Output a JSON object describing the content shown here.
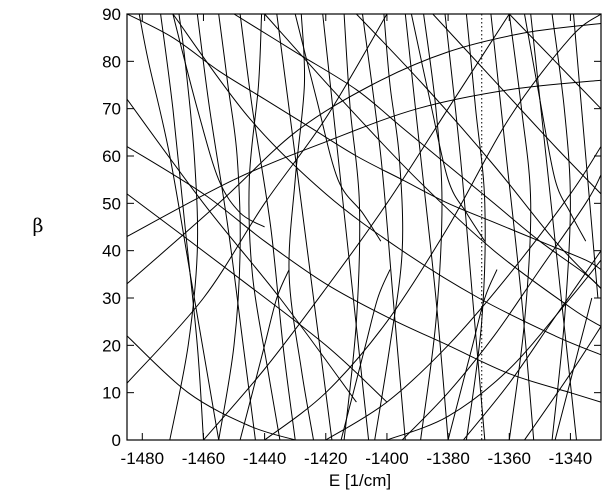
{
  "chart_data": {
    "type": "line",
    "xlabel": "E [1/cm]",
    "ylabel": "β",
    "xlim": [
      -1485,
      -1330
    ],
    "ylim": [
      0,
      90
    ],
    "x_ticks": [
      -1480,
      -1460,
      -1440,
      -1420,
      -1400,
      -1380,
      -1360,
      -1340
    ],
    "y_ticks": [
      0,
      10,
      20,
      30,
      40,
      50,
      60,
      70,
      80,
      90
    ],
    "x_tick_labels": [
      "-1480",
      "-1460",
      "-1440",
      "-1420",
      "-1400",
      "-1380",
      "-1360",
      "-1340"
    ],
    "y_tick_labels": [
      "0",
      "10",
      "20",
      "30",
      "40",
      "50",
      "60",
      "70",
      "80",
      "90"
    ],
    "reference_line": {
      "x": -1369,
      "style": "dotted"
    },
    "grid": false,
    "series": [
      {
        "x": [
          -1481,
          -1478,
          -1471,
          -1463,
          -1455
        ],
        "y": [
          90,
          80,
          60,
          30,
          0
        ]
      },
      {
        "x": [
          -1474,
          -1470,
          -1466,
          -1462,
          -1460
        ],
        "y": [
          90,
          70,
          45,
          20,
          0
        ]
      },
      {
        "x": [
          -1468,
          -1466,
          -1463,
          -1462,
          -1465,
          -1471
        ],
        "y": [
          90,
          80,
          60,
          40,
          20,
          0
        ]
      },
      {
        "x": [
          -1462,
          -1458,
          -1452,
          -1447,
          -1443
        ],
        "y": [
          90,
          70,
          45,
          20,
          0
        ]
      },
      {
        "x": [
          -1455,
          -1452,
          -1449,
          -1448,
          -1450,
          -1455
        ],
        "y": [
          90,
          75,
          60,
          40,
          20,
          0
        ]
      },
      {
        "x": [
          -1448,
          -1444,
          -1438,
          -1434,
          -1430
        ],
        "y": [
          90,
          70,
          45,
          20,
          0
        ]
      },
      {
        "x": [
          -1441,
          -1442,
          -1445,
          -1444,
          -1439,
          -1435
        ],
        "y": [
          90,
          75,
          55,
          35,
          15,
          0
        ]
      },
      {
        "x": [
          -1436,
          -1430,
          -1424,
          -1418
        ],
        "y": [
          90,
          60,
          30,
          0
        ]
      },
      {
        "x": [
          -1428,
          -1427,
          -1430,
          -1432,
          -1428,
          -1424
        ],
        "y": [
          90,
          75,
          55,
          35,
          15,
          0
        ]
      },
      {
        "x": [
          -1421,
          -1416,
          -1411,
          -1406
        ],
        "y": [
          90,
          60,
          30,
          0
        ]
      },
      {
        "x": [
          -1414,
          -1412,
          -1409,
          -1410,
          -1414
        ],
        "y": [
          90,
          70,
          50,
          25,
          0
        ]
      },
      {
        "x": [
          -1408,
          -1402,
          -1398,
          -1394
        ],
        "y": [
          90,
          60,
          30,
          0
        ]
      },
      {
        "x": [
          -1401,
          -1399,
          -1396,
          -1395,
          -1399,
          -1404
        ],
        "y": [
          90,
          75,
          60,
          40,
          20,
          0
        ]
      },
      {
        "x": [
          -1394,
          -1389,
          -1384,
          -1380
        ],
        "y": [
          90,
          60,
          30,
          0
        ]
      },
      {
        "x": [
          -1388,
          -1384,
          -1382,
          -1384,
          -1389
        ],
        "y": [
          90,
          70,
          50,
          25,
          0
        ]
      },
      {
        "x": [
          -1381,
          -1376,
          -1372,
          -1368
        ],
        "y": [
          90,
          60,
          30,
          0
        ]
      },
      {
        "x": [
          -1374,
          -1371,
          -1368,
          -1369,
          -1374
        ],
        "y": [
          90,
          70,
          50,
          25,
          0
        ]
      },
      {
        "x": [
          -1366,
          -1361,
          -1356,
          -1352
        ],
        "y": [
          90,
          60,
          30,
          0
        ]
      },
      {
        "x": [
          -1360,
          -1356,
          -1353,
          -1355,
          -1360
        ],
        "y": [
          90,
          70,
          50,
          25,
          0
        ]
      },
      {
        "x": [
          -1353,
          -1348,
          -1343,
          -1338
        ],
        "y": [
          90,
          60,
          30,
          0
        ]
      },
      {
        "x": [
          -1346,
          -1342,
          -1340,
          -1342,
          -1346
        ],
        "y": [
          90,
          70,
          50,
          25,
          0
        ]
      },
      {
        "x": [
          -1339,
          -1335,
          -1331
        ],
        "y": [
          90,
          60,
          30
        ]
      },
      {
        "x": [
          -1485,
          -1460,
          -1435,
          -1410
        ],
        "y": [
          72,
          50,
          30,
          8
        ]
      },
      {
        "x": [
          -1485,
          -1450,
          -1420,
          -1400
        ],
        "y": [
          52,
          35,
          20,
          8
        ]
      },
      {
        "x": [
          -1485,
          -1455,
          -1430,
          -1405,
          -1380,
          -1355,
          -1330
        ],
        "y": [
          33,
          50,
          65,
          75,
          82,
          86,
          88
        ]
      },
      {
        "x": [
          -1485,
          -1460,
          -1440,
          -1420,
          -1400
        ],
        "y": [
          12,
          30,
          50,
          68,
          90
        ]
      },
      {
        "x": [
          -1485,
          -1450,
          -1420,
          -1390,
          -1360,
          -1330
        ],
        "y": [
          43,
          55,
          63,
          70,
          74,
          76
        ]
      },
      {
        "x": [
          -1460,
          -1440,
          -1420,
          -1400,
          -1380,
          -1360
        ],
        "y": [
          0,
          15,
          32,
          50,
          70,
          90
        ]
      },
      {
        "x": [
          -1440,
          -1420,
          -1400,
          -1380,
          -1360,
          -1340,
          -1330
        ],
        "y": [
          0,
          10,
          25,
          45,
          68,
          85,
          90
        ]
      },
      {
        "x": [
          -1420,
          -1400,
          -1380,
          -1360,
          -1340,
          -1330
        ],
        "y": [
          0,
          8,
          20,
          35,
          52,
          62
        ]
      },
      {
        "x": [
          -1400,
          -1380,
          -1360,
          -1340,
          -1330
        ],
        "y": [
          0,
          5,
          15,
          30,
          38
        ]
      },
      {
        "x": [
          -1485,
          -1460,
          -1440,
          -1420,
          -1400,
          -1380,
          -1360,
          -1340,
          -1330
        ],
        "y": [
          62,
          52,
          42,
          33,
          26,
          20,
          14,
          10,
          8
        ]
      },
      {
        "x": [
          -1470,
          -1445,
          -1420,
          -1395,
          -1370,
          -1345,
          -1330
        ],
        "y": [
          90,
          68,
          52,
          40,
          30,
          22,
          18
        ]
      },
      {
        "x": [
          -1440,
          -1415,
          -1390,
          -1365,
          -1340,
          -1330
        ],
        "y": [
          90,
          72,
          55,
          40,
          28,
          24
        ]
      },
      {
        "x": [
          -1410,
          -1388,
          -1365,
          -1345,
          -1330
        ],
        "y": [
          90,
          75,
          58,
          42,
          32
        ]
      },
      {
        "x": [
          -1385,
          -1365,
          -1345,
          -1330
        ],
        "y": [
          90,
          76,
          62,
          52
        ]
      },
      {
        "x": [
          -1360,
          -1345,
          -1330
        ],
        "y": [
          90,
          80,
          70
        ]
      },
      {
        "x": [
          -1485,
          -1465,
          -1445,
          -1430
        ],
        "y": [
          22,
          10,
          3,
          0
        ]
      },
      {
        "x": [
          -1485,
          -1470,
          -1455,
          -1440,
          -1425,
          -1410,
          -1395,
          -1380,
          -1365,
          -1350,
          -1335,
          -1330
        ],
        "y": [
          90,
          85,
          78,
          72,
          66,
          60,
          55,
          50,
          46,
          42,
          38,
          36
        ]
      },
      {
        "x": [
          -1450,
          -1430,
          -1410,
          -1395,
          -1380,
          -1365,
          -1350,
          -1335,
          -1330
        ],
        "y": [
          90,
          82,
          74,
          66,
          58,
          50,
          42,
          35,
          32
        ]
      },
      {
        "x": [
          -1395,
          -1380,
          -1365,
          -1350,
          -1335,
          -1330
        ],
        "y": [
          0,
          10,
          22,
          36,
          50,
          56
        ]
      },
      {
        "x": [
          -1375,
          -1360,
          -1345,
          -1330
        ],
        "y": [
          0,
          12,
          26,
          40
        ]
      },
      {
        "x": [
          -1355,
          -1340,
          -1330
        ],
        "y": [
          0,
          14,
          24
        ]
      },
      {
        "x": [
          -1470,
          -1462,
          -1455,
          -1448,
          -1440
        ],
        "y": [
          90,
          70,
          55,
          48,
          45
        ]
      },
      {
        "x": [
          -1430,
          -1423,
          -1416,
          -1408,
          -1402
        ],
        "y": [
          90,
          72,
          55,
          48,
          42
        ]
      },
      {
        "x": [
          -1392,
          -1386,
          -1380,
          -1374,
          -1368
        ],
        "y": [
          90,
          72,
          55,
          48,
          42
        ]
      },
      {
        "x": [
          -1355,
          -1350,
          -1345,
          -1340,
          -1335
        ],
        "y": [
          90,
          72,
          55,
          48,
          42
        ]
      },
      {
        "x": [
          -1448,
          -1444,
          -1440,
          -1436,
          -1432
        ],
        "y": [
          0,
          10,
          20,
          30,
          36
        ]
      },
      {
        "x": [
          -1415,
          -1411,
          -1407,
          -1403,
          -1399
        ],
        "y": [
          0,
          10,
          20,
          30,
          36
        ]
      },
      {
        "x": [
          -1380,
          -1376,
          -1372,
          -1368,
          -1364
        ],
        "y": [
          0,
          10,
          20,
          30,
          36
        ]
      },
      {
        "x": [
          -1345,
          -1341,
          -1337,
          -1333
        ],
        "y": [
          0,
          10,
          20,
          30
        ]
      }
    ]
  }
}
